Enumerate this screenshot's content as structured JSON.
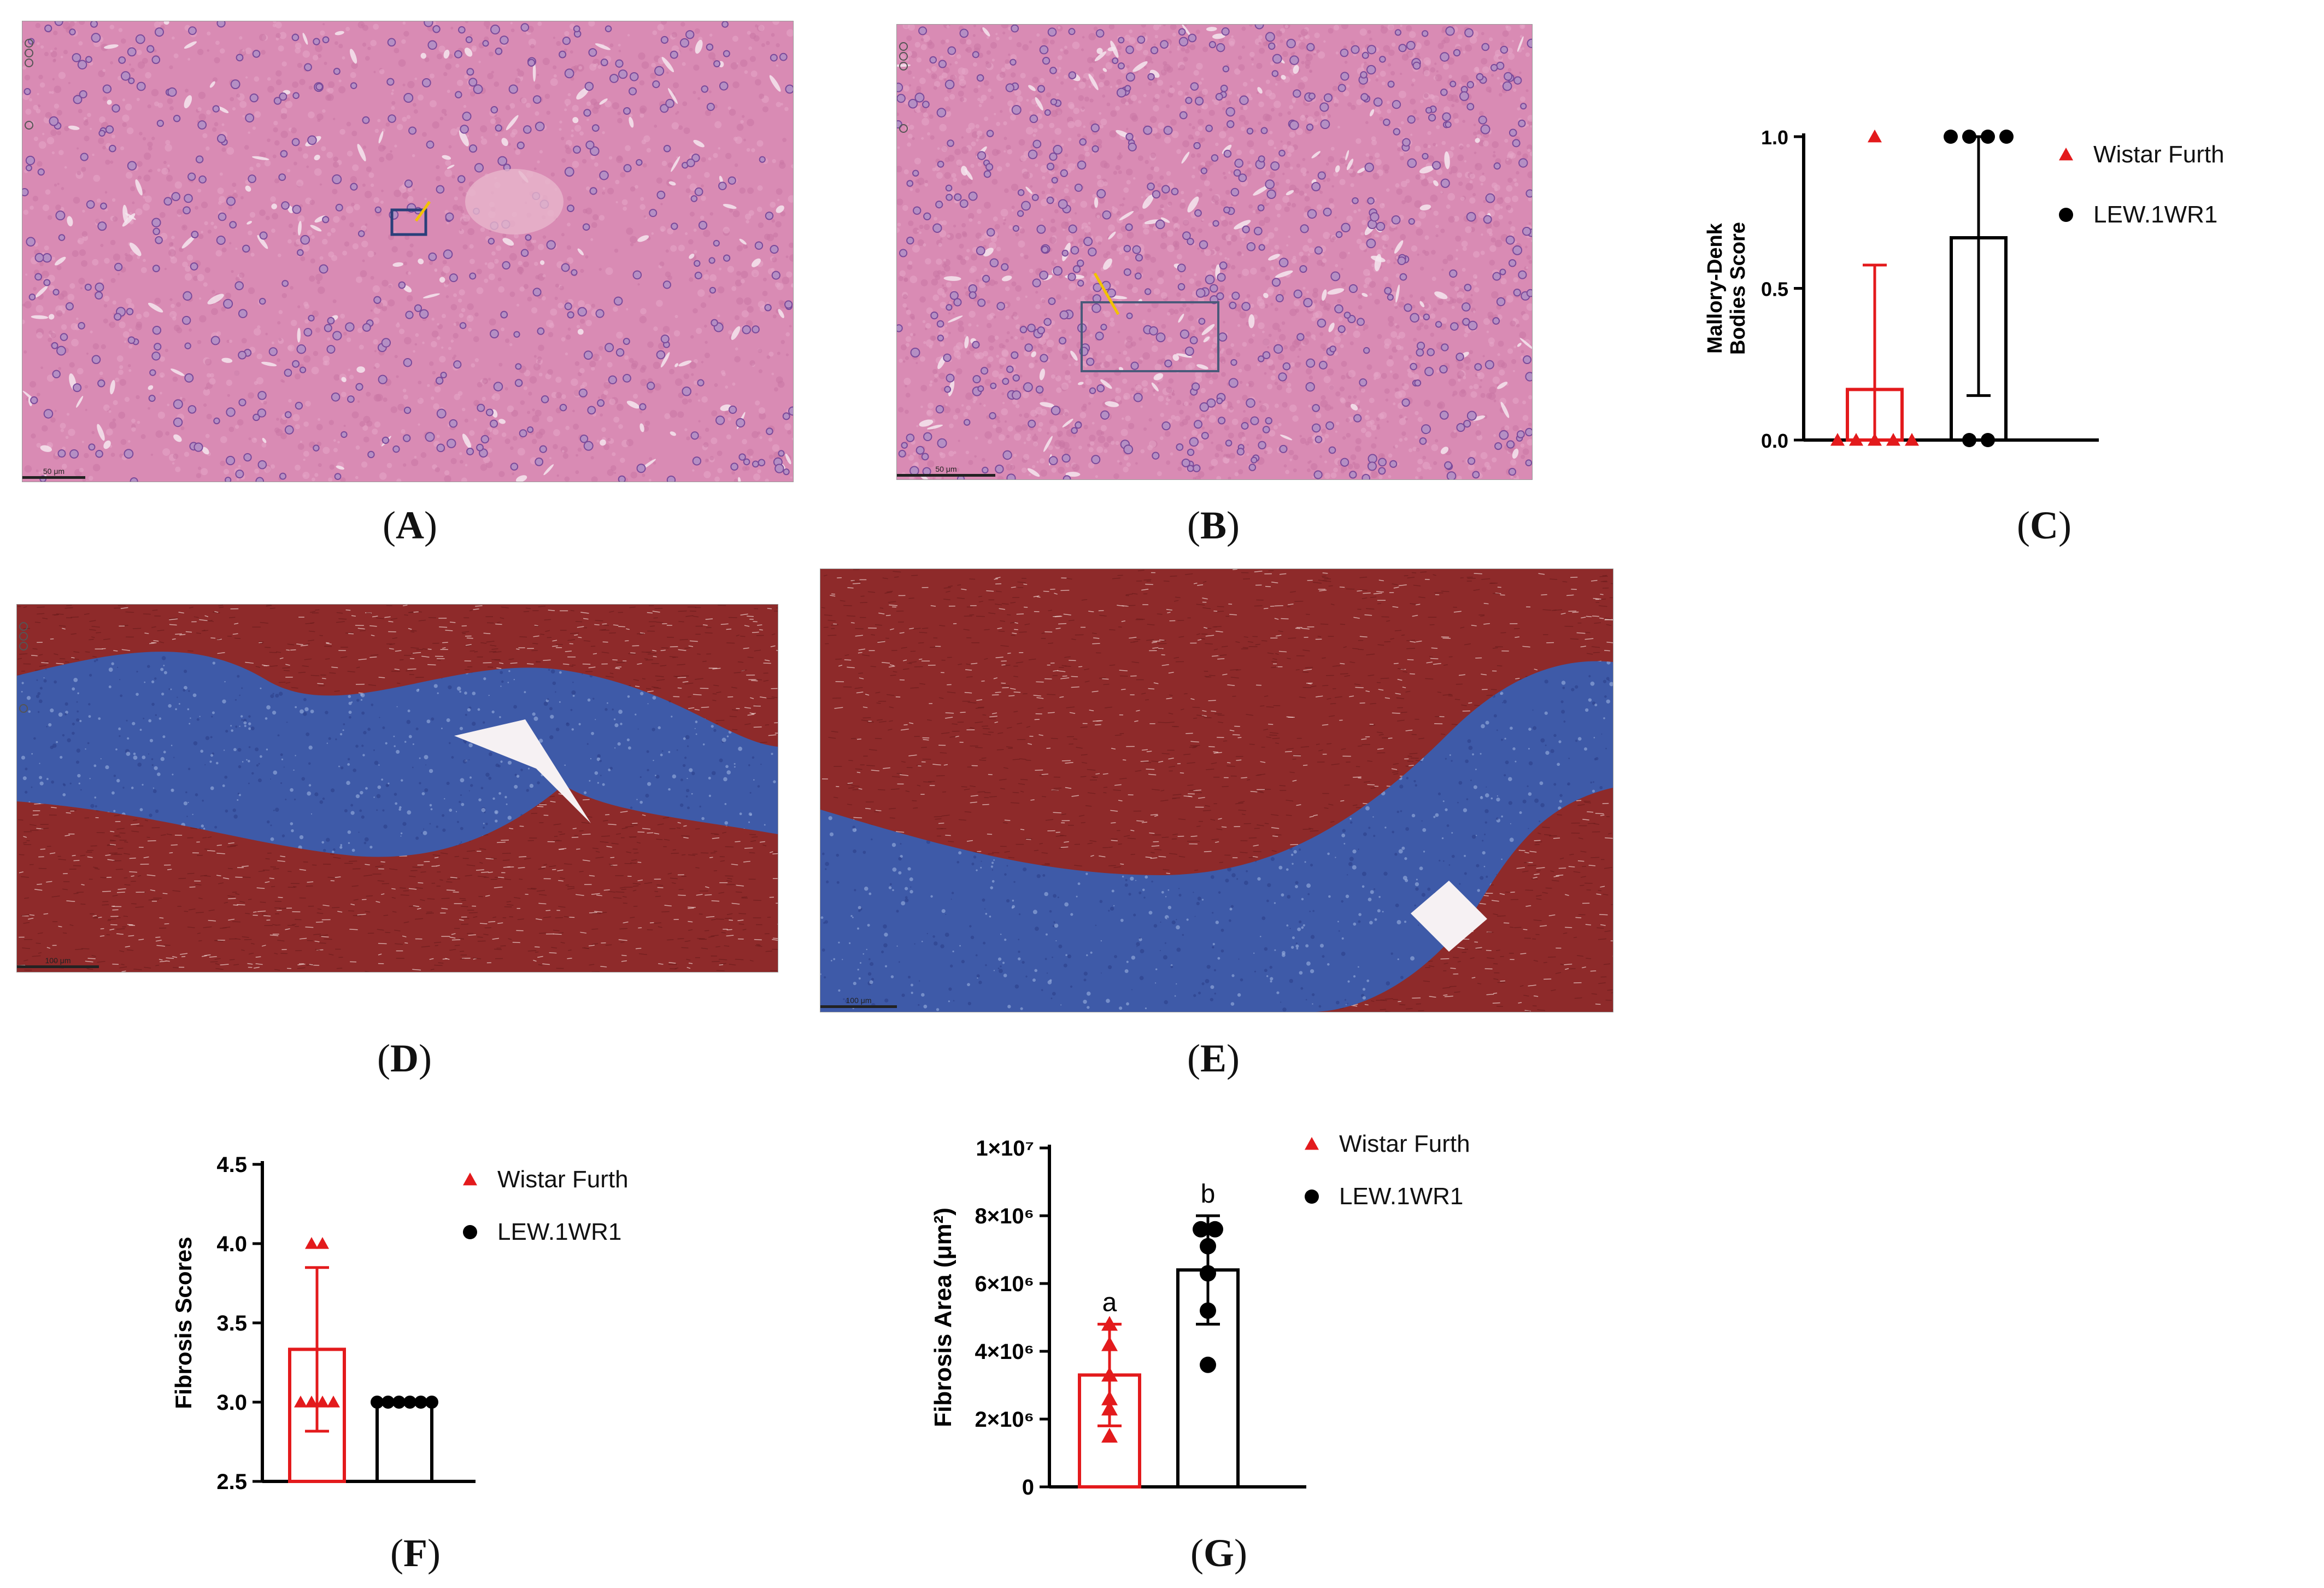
{
  "panels": {
    "A": {
      "label": "A",
      "scale_bar": "50 μm"
    },
    "B": {
      "label": "B",
      "scale_bar": "50 μm"
    },
    "C": {
      "label": "C"
    },
    "D": {
      "label": "D",
      "scale_bar": "100 μm"
    },
    "E": {
      "label": "E",
      "scale_bar": "100 μm"
    },
    "F": {
      "label": "F"
    },
    "G": {
      "label": "G"
    }
  },
  "colors": {
    "wistar": "#e31a1c",
    "lew": "#000000",
    "he_tissue": "#d98bb4",
    "he_nucleus": "#7b4a9a",
    "trichrome_muscle": "#8e2a2a",
    "trichrome_collagen": "#3e5aa8",
    "box": "#2a3f7a",
    "arrow": "#f2c200"
  },
  "chart_data": [
    {
      "id": "C",
      "type": "bar",
      "title": "",
      "xlabel": "",
      "ylabel": "Mallory-Denk Bodies Score",
      "ylabel_lines": [
        "Mallory-Denk",
        "Bodies Score"
      ],
      "ylim": [
        0,
        1.0
      ],
      "yticks": [
        "0.0",
        "0.5",
        "1.0"
      ],
      "ytick_values": [
        0,
        0.5,
        1.0
      ],
      "legend": {
        "placement": "right",
        "entries": [
          "Wistar Furth",
          "LEW.1WR1"
        ]
      },
      "series": [
        {
          "name": "Wistar Furth",
          "mean": 0.1667,
          "sd": 0.41,
          "points": [
            0,
            0,
            0,
            0,
            0,
            1
          ]
        },
        {
          "name": "LEW.1WR1",
          "mean": 0.6667,
          "sd": 0.52,
          "points": [
            0,
            0,
            1,
            1,
            1,
            1
          ]
        }
      ]
    },
    {
      "id": "F",
      "type": "bar",
      "title": "",
      "xlabel": "",
      "ylabel": "Fibrosis Scores",
      "ylim": [
        2.5,
        4.5
      ],
      "yticks": [
        "2.5",
        "3.0",
        "3.5",
        "4.0",
        "4.5"
      ],
      "ytick_values": [
        2.5,
        3.0,
        3.5,
        4.0,
        4.5
      ],
      "legend": {
        "placement": "top-right",
        "entries": [
          "Wistar Furth",
          "LEW.1WR1"
        ]
      },
      "series": [
        {
          "name": "Wistar Furth",
          "mean": 3.333,
          "sd": 0.516,
          "points": [
            3,
            3,
            3,
            3,
            4,
            4
          ]
        },
        {
          "name": "LEW.1WR1",
          "mean": 3.0,
          "sd": 0,
          "points": [
            3,
            3,
            3,
            3,
            3,
            3
          ]
        }
      ]
    },
    {
      "id": "G",
      "type": "bar",
      "title": "",
      "xlabel": "",
      "ylabel": "Fibrosis Area (μm²)",
      "ylim": [
        0,
        10000000
      ],
      "yticks": [
        "0",
        "2×10⁶",
        "4×10⁶",
        "6×10⁶",
        "8×10⁶",
        "1×10⁷"
      ],
      "ytick_values": [
        0,
        2000000,
        4000000,
        6000000,
        8000000,
        10000000
      ],
      "legend": {
        "placement": "top-right",
        "entries": [
          "Wistar Furth",
          "LEW.1WR1"
        ]
      },
      "annotations": [
        "a",
        "b"
      ],
      "series": [
        {
          "name": "Wistar Furth",
          "mean": 3300000,
          "sd": 1500000,
          "points": [
            1500000,
            2300000,
            2600000,
            3300000,
            4200000,
            4800000
          ]
        },
        {
          "name": "LEW.1WR1",
          "mean": 6400000,
          "sd": 1600000,
          "points": [
            3600000,
            5200000,
            6300000,
            7100000,
            7600000,
            7600000
          ]
        }
      ]
    }
  ]
}
